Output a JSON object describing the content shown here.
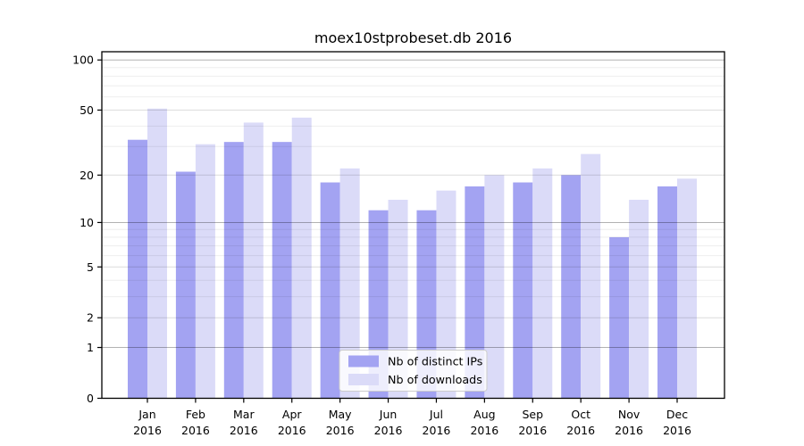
{
  "chart_data": {
    "type": "bar",
    "title": "moex10stprobeset.db 2016",
    "categories": [
      "Jan",
      "Feb",
      "Mar",
      "Apr",
      "May",
      "Jun",
      "Jul",
      "Aug",
      "Sep",
      "Oct",
      "Nov",
      "Dec"
    ],
    "x_tick_second_line": "2016",
    "series": [
      {
        "name": "Nb of distinct IPs",
        "color": "#a3a3f2",
        "values": [
          33,
          21,
          32,
          32,
          18,
          12,
          12,
          17,
          18,
          20,
          8,
          17
        ]
      },
      {
        "name": "Nb of downloads",
        "color": "#dbdbf8",
        "values": [
          51,
          31,
          42,
          45,
          22,
          14,
          16,
          20,
          22,
          27,
          14,
          19
        ]
      }
    ],
    "xlabel": "",
    "ylabel": "",
    "yscale": "symlog",
    "ylim": [
      0,
      112
    ],
    "y_ticks": [
      0,
      1,
      2,
      5,
      10,
      20,
      50,
      100
    ],
    "y_minor_ticks": [
      3,
      4,
      6,
      7,
      8,
      9,
      30,
      40,
      60,
      70,
      80,
      90
    ],
    "grid": true,
    "legend": {
      "position": "lower center inside",
      "entries": [
        "Nb of distinct IPs",
        "Nb of downloads"
      ]
    },
    "colors": {
      "spine": "#000000",
      "grid_decade": "rgba(0,0,0,0.30)",
      "grid_major": "rgba(0,0,0,0.14)",
      "grid_minor": "rgba(0,0,0,0.07)",
      "legend_border": "#cccccc",
      "legend_background": "rgba(255,255,255,0.82)"
    }
  }
}
